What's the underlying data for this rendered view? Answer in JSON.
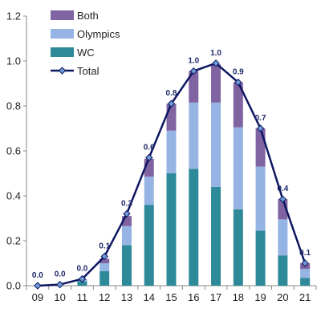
{
  "chart_data": {
    "type": "bar",
    "stacked": true,
    "categories": [
      "09",
      "10",
      "11",
      "12",
      "13",
      "14",
      "15",
      "16",
      "17",
      "18",
      "19",
      "20",
      "21"
    ],
    "series": [
      {
        "name": "WC",
        "color": "#2e8a99",
        "values": [
          0.0,
          0.0,
          0.02,
          0.065,
          0.18,
          0.36,
          0.5,
          0.52,
          0.44,
          0.34,
          0.245,
          0.135,
          0.035
        ]
      },
      {
        "name": "Olympics",
        "color": "#95b3e3",
        "values": [
          0.0,
          0.0,
          0.005,
          0.035,
          0.085,
          0.125,
          0.19,
          0.295,
          0.375,
          0.365,
          0.285,
          0.16,
          0.04
        ]
      },
      {
        "name": "Both",
        "color": "#8064a2",
        "values": [
          0.0,
          0.0,
          0.003,
          0.02,
          0.045,
          0.08,
          0.12,
          0.14,
          0.17,
          0.2,
          0.17,
          0.09,
          0.025
        ]
      }
    ],
    "line": {
      "name": "Total",
      "color": "#0d1660",
      "values": [
        0.0,
        0.005,
        0.03,
        0.13,
        0.32,
        0.57,
        0.81,
        0.955,
        0.99,
        0.905,
        0.7,
        0.385,
        0.1
      ],
      "data_labels": [
        "0.0",
        "0.0",
        "0.0",
        "0.1",
        "0.3",
        "0.6",
        "0.8",
        "1.0",
        "1.0",
        "0.9",
        "0.7",
        "0.4",
        "0.1"
      ]
    },
    "y_ticks": [
      "0.0",
      "0.2",
      "0.4",
      "0.6",
      "0.8",
      "1.0",
      "1.2"
    ],
    "ylim": [
      0,
      1.2
    ],
    "legend_order": [
      "Both",
      "Olympics",
      "WC",
      "Total"
    ],
    "legend_position": "top-left",
    "grid": false
  }
}
